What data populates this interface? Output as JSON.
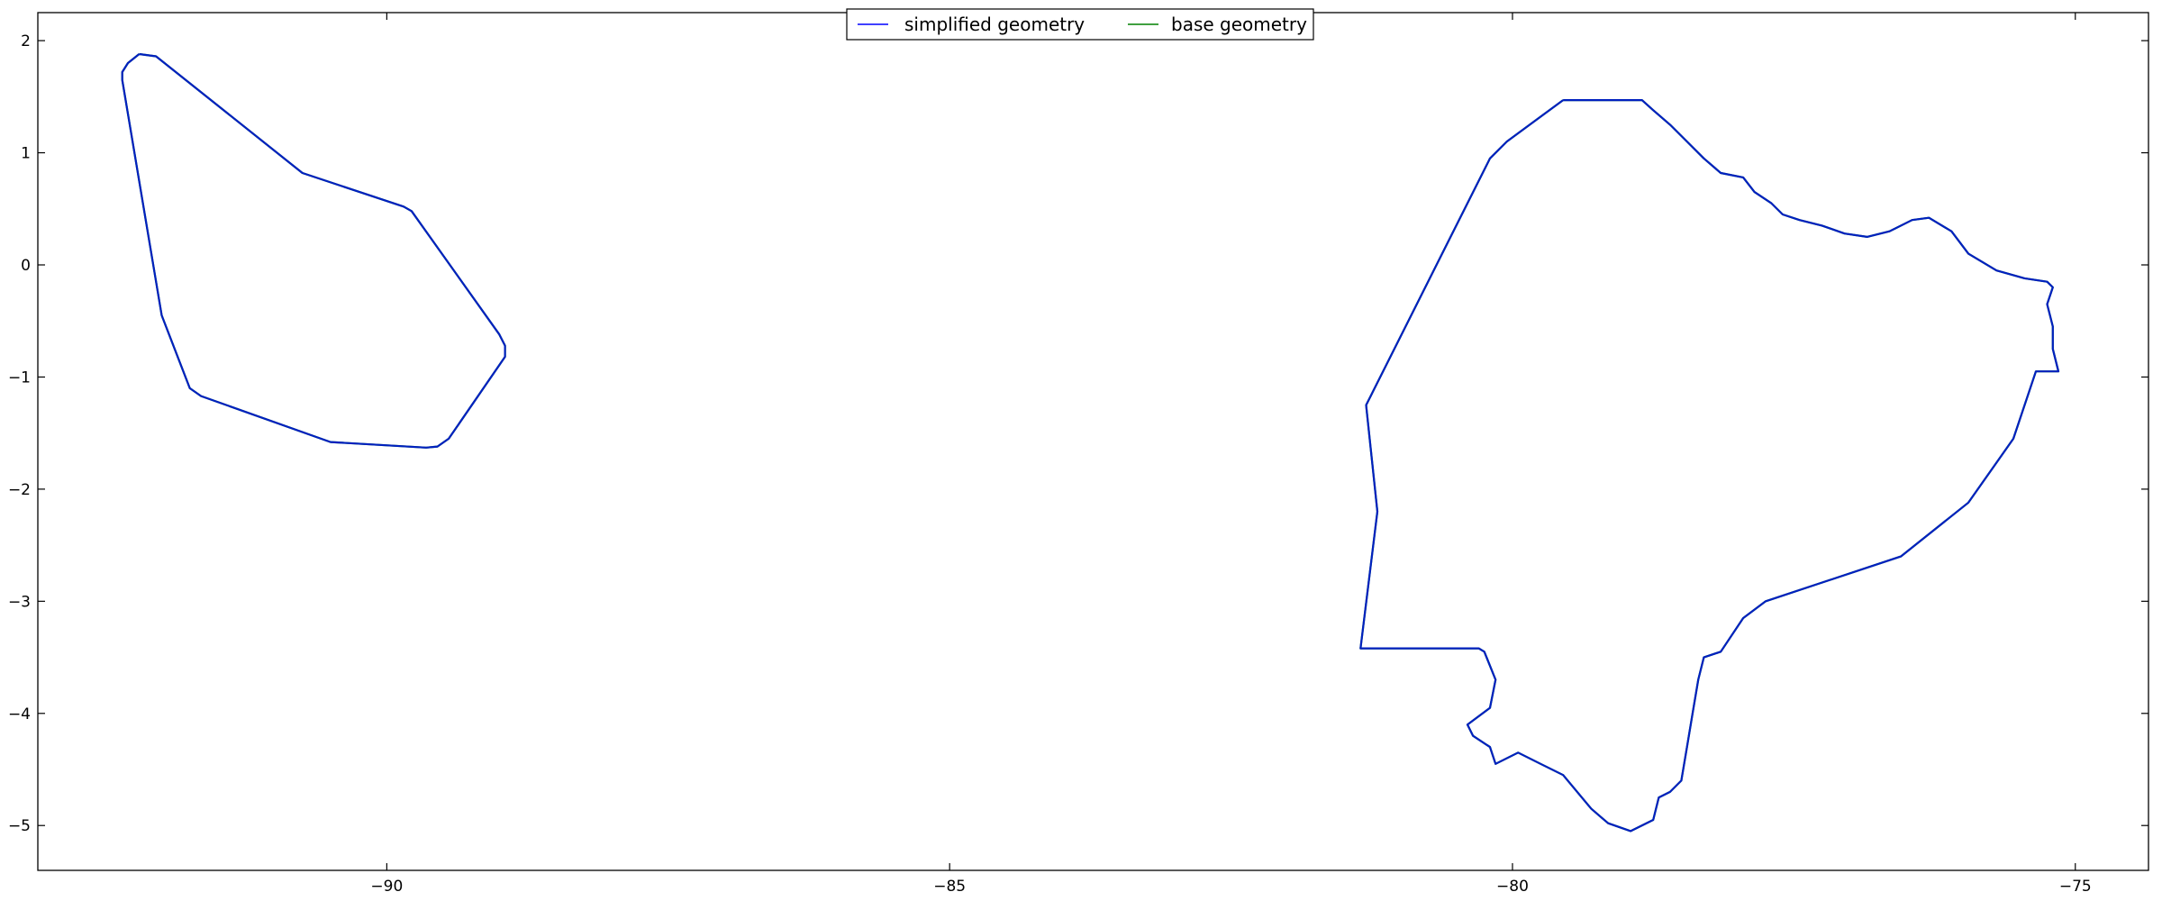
{
  "chart_data": {
    "type": "line",
    "title": "",
    "xlabel": "",
    "ylabel": "",
    "xlim": [
      -93.1,
      -74.35
    ],
    "ylim": [
      -5.4,
      2.25
    ],
    "xticks": [
      -90,
      -85,
      -80,
      -75
    ],
    "yticks": [
      2,
      1,
      0,
      -1,
      -2,
      -3,
      -4,
      -5
    ],
    "x_tick_labels": [
      "−90",
      "−85",
      "−80",
      "−75"
    ],
    "y_tick_labels": [
      "2",
      "1",
      "0",
      "−1",
      "−2",
      "−3",
      "−4",
      "−5"
    ],
    "grid": false,
    "legend": {
      "placement": "top-center",
      "columns": 2
    },
    "series": [
      {
        "name": "simplified geometry",
        "color": "#0000ff",
        "polygons": [
          [
            [
              -92.2,
              1.88
            ],
            [
              -92.05,
              1.86
            ],
            [
              -90.75,
              0.82
            ],
            [
              -89.85,
              0.52
            ],
            [
              -89.78,
              0.48
            ],
            [
              -89.0,
              -0.62
            ],
            [
              -88.95,
              -0.72
            ],
            [
              -88.95,
              -0.82
            ],
            [
              -89.45,
              -1.55
            ],
            [
              -89.55,
              -1.62
            ],
            [
              -89.65,
              -1.63
            ],
            [
              -90.5,
              -1.58
            ],
            [
              -91.65,
              -1.17
            ],
            [
              -91.75,
              -1.1
            ],
            [
              -92.0,
              -0.45
            ],
            [
              -92.35,
              1.65
            ],
            [
              -92.35,
              1.72
            ],
            [
              -92.3,
              1.8
            ],
            [
              -92.2,
              1.88
            ]
          ],
          [
            [
              -79.55,
              1.47
            ],
            [
              -78.85,
              1.47
            ],
            [
              -78.75,
              1.38
            ],
            [
              -78.6,
              1.25
            ],
            [
              -78.45,
              1.1
            ],
            [
              -78.3,
              0.95
            ],
            [
              -78.15,
              0.82
            ],
            [
              -77.95,
              0.78
            ],
            [
              -77.85,
              0.65
            ],
            [
              -77.7,
              0.55
            ],
            [
              -77.6,
              0.45
            ],
            [
              -77.45,
              0.4
            ],
            [
              -77.25,
              0.35
            ],
            [
              -77.05,
              0.28
            ],
            [
              -76.85,
              0.25
            ],
            [
              -76.65,
              0.3
            ],
            [
              -76.45,
              0.4
            ],
            [
              -76.3,
              0.42
            ],
            [
              -76.1,
              0.3
            ],
            [
              -75.95,
              0.1
            ],
            [
              -75.7,
              -0.05
            ],
            [
              -75.45,
              -0.12
            ],
            [
              -75.25,
              -0.15
            ],
            [
              -75.2,
              -0.2
            ],
            [
              -75.25,
              -0.35
            ],
            [
              -75.2,
              -0.55
            ],
            [
              -75.2,
              -0.75
            ],
            [
              -75.15,
              -0.95
            ],
            [
              -75.35,
              -0.95
            ],
            [
              -75.55,
              -1.55
            ],
            [
              -75.95,
              -2.12
            ],
            [
              -76.55,
              -2.6
            ],
            [
              -77.75,
              -3.0
            ],
            [
              -77.95,
              -3.15
            ],
            [
              -78.15,
              -3.45
            ],
            [
              -78.3,
              -3.5
            ],
            [
              -78.35,
              -3.7
            ],
            [
              -78.4,
              -4.0
            ],
            [
              -78.45,
              -4.3
            ],
            [
              -78.5,
              -4.6
            ],
            [
              -78.6,
              -4.7
            ],
            [
              -78.7,
              -4.75
            ],
            [
              -78.75,
              -4.95
            ],
            [
              -78.95,
              -5.05
            ],
            [
              -79.15,
              -4.98
            ],
            [
              -79.3,
              -4.85
            ],
            [
              -79.55,
              -4.55
            ],
            [
              -79.75,
              -4.45
            ],
            [
              -79.95,
              -4.35
            ],
            [
              -80.15,
              -4.45
            ],
            [
              -80.2,
              -4.3
            ],
            [
              -80.35,
              -4.2
            ],
            [
              -80.4,
              -4.1
            ],
            [
              -80.2,
              -3.95
            ],
            [
              -80.15,
              -3.7
            ],
            [
              -80.25,
              -3.45
            ],
            [
              -80.3,
              -3.42
            ],
            [
              -81.35,
              -3.42
            ],
            [
              -81.2,
              -2.2
            ],
            [
              -81.3,
              -1.25
            ],
            [
              -81.25,
              -1.15
            ],
            [
              -80.2,
              0.95
            ],
            [
              -80.05,
              1.1
            ],
            [
              -79.55,
              1.47
            ]
          ]
        ]
      },
      {
        "name": "base geometry",
        "color": "#008000",
        "polygons": []
      }
    ]
  }
}
